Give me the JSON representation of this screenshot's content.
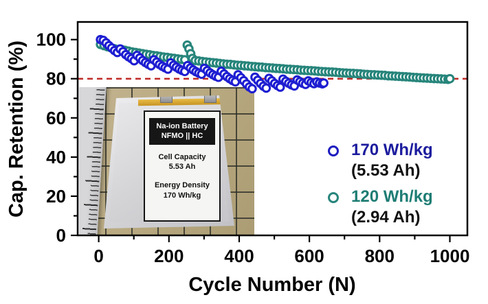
{
  "axes": {
    "x_label": "Cycle Number (N)",
    "y_label": "Cap. Retention (%)",
    "x_tick_labels": [
      "0",
      "200",
      "400",
      "600",
      "800",
      "1000"
    ],
    "y_tick_labels": [
      "0",
      "20",
      "40",
      "60",
      "80",
      "100"
    ]
  },
  "legend": {
    "entries": [
      {
        "label": "170 Wh/kg",
        "sub": "(5.53 Ah)",
        "marker_color": "#1d1dc0",
        "text_color": "#1c1c9e"
      },
      {
        "label": "120 Wh/kg",
        "sub": "(2.94 Ah)",
        "marker_color": "#27857b",
        "text_color": "#1e7d74"
      }
    ]
  },
  "inset": {
    "battery_label": {
      "title_line1": "Na-ion Battery",
      "title_line2": "NFMO || HC",
      "capacity_title": "Cell Capacity",
      "capacity_value": "5.53 Ah",
      "energy_title": "Energy Density",
      "energy_value": "170 Wh/kg"
    }
  },
  "chart_data": {
    "type": "scatter",
    "xlabel": "Cycle Number (N)",
    "ylabel": "Cap. Retention (%)",
    "xlim": [
      -60,
      1050
    ],
    "ylim": [
      0,
      109
    ],
    "x_major_ticks": [
      0,
      200,
      400,
      600,
      800,
      1000
    ],
    "x_minor_ticks": [
      100,
      300,
      500,
      700,
      900
    ],
    "y_major_ticks": [
      0,
      20,
      40,
      60,
      80,
      100
    ],
    "y_minor_ticks": [
      10,
      30,
      50,
      70,
      90
    ],
    "grid": false,
    "legend_position": "inside-right",
    "reference_line": {
      "y": 80,
      "color": "#bf2b28",
      "style": "dashed"
    },
    "series": [
      {
        "name": "170 Wh/kg (5.53 Ah)",
        "color": "#1e1ed2",
        "marker": "open-circle",
        "points": [
          [
            5,
            100
          ],
          [
            13,
            99.6
          ],
          [
            21,
            98.3
          ],
          [
            29,
            96.9
          ],
          [
            37,
            95.7
          ],
          [
            45,
            94.4
          ],
          [
            53,
            93.4
          ],
          [
            61,
            95.2
          ],
          [
            69,
            93.8
          ],
          [
            77,
            92.3
          ],
          [
            85,
            91.2
          ],
          [
            93,
            90.3
          ],
          [
            101,
            89.2
          ],
          [
            109,
            91.9
          ],
          [
            117,
            90.6
          ],
          [
            125,
            89.3
          ],
          [
            133,
            88.3
          ],
          [
            141,
            87.4
          ],
          [
            149,
            86.6
          ],
          [
            157,
            89.7
          ],
          [
            165,
            88.5
          ],
          [
            173,
            87.3
          ],
          [
            181,
            86.4
          ],
          [
            189,
            85.6
          ],
          [
            197,
            84.9
          ],
          [
            205,
            88.1
          ],
          [
            213,
            86.9
          ],
          [
            221,
            85.9
          ],
          [
            229,
            85.0
          ],
          [
            237,
            84.3
          ],
          [
            245,
            83.7
          ],
          [
            253,
            86.7
          ],
          [
            261,
            85.5
          ],
          [
            269,
            84.5
          ],
          [
            277,
            83.6
          ],
          [
            285,
            82.9
          ],
          [
            293,
            82.3
          ],
          [
            301,
            85.3
          ],
          [
            309,
            84.1
          ],
          [
            317,
            83.0
          ],
          [
            325,
            82.1
          ],
          [
            333,
            81.3
          ],
          [
            341,
            80.7
          ],
          [
            349,
            83.8
          ],
          [
            357,
            82.4
          ],
          [
            365,
            81.1
          ],
          [
            373,
            80.0
          ],
          [
            381,
            79.1
          ],
          [
            389,
            78.4
          ],
          [
            397,
            82.0
          ],
          [
            405,
            80.5
          ],
          [
            413,
            79.0
          ],
          [
            421,
            77.3
          ],
          [
            429,
            75.8
          ],
          [
            437,
            74.9
          ],
          [
            445,
            80.8
          ],
          [
            453,
            79.2
          ],
          [
            461,
            77.6
          ],
          [
            469,
            76.2
          ],
          [
            477,
            75.2
          ],
          [
            485,
            80.2
          ],
          [
            493,
            78.9
          ],
          [
            501,
            77.6
          ],
          [
            509,
            76.5
          ],
          [
            517,
            75.7
          ],
          [
            525,
            79.8
          ],
          [
            533,
            78.7
          ],
          [
            541,
            77.7
          ],
          [
            549,
            76.9
          ],
          [
            557,
            76.3
          ],
          [
            565,
            79.4
          ],
          [
            573,
            78.5
          ],
          [
            581,
            77.7
          ],
          [
            589,
            77.1
          ],
          [
            597,
            78.9
          ],
          [
            605,
            78.1
          ],
          [
            613,
            77.5
          ],
          [
            621,
            78.4
          ],
          [
            629,
            77.8
          ],
          [
            637,
            77.4
          ],
          [
            641,
            77.8
          ]
        ]
      },
      {
        "name": "120 Wh/kg (2.94 Ah)",
        "color": "#27857b",
        "marker": "open-circle",
        "points": [
          [
            5,
            97.5
          ],
          [
            15,
            96.9
          ],
          [
            25,
            96.3
          ],
          [
            35,
            95.8
          ],
          [
            45,
            95.3
          ],
          [
            55,
            94.9
          ],
          [
            65,
            94.9
          ],
          [
            75,
            94.5
          ],
          [
            85,
            94.1
          ],
          [
            95,
            93.7
          ],
          [
            105,
            93.4
          ],
          [
            115,
            93.1
          ],
          [
            125,
            92.8
          ],
          [
            135,
            92.5
          ],
          [
            145,
            92.2
          ],
          [
            155,
            91.9
          ],
          [
            165,
            91.7
          ],
          [
            175,
            91.4
          ],
          [
            185,
            91.1
          ],
          [
            195,
            90.9
          ],
          [
            205,
            90.6
          ],
          [
            215,
            90.4
          ],
          [
            225,
            90.1
          ],
          [
            235,
            89.9
          ],
          [
            245,
            89.7
          ],
          [
            252,
            97.2
          ],
          [
            257,
            95.3
          ],
          [
            262,
            92.8
          ],
          [
            267,
            90.4
          ],
          [
            275,
            89.3
          ],
          [
            285,
            89.1
          ],
          [
            295,
            88.8
          ],
          [
            305,
            88.6
          ],
          [
            315,
            88.4
          ],
          [
            325,
            88.2
          ],
          [
            335,
            88.0
          ],
          [
            345,
            87.8
          ],
          [
            355,
            87.6
          ],
          [
            365,
            87.4
          ],
          [
            375,
            87.3
          ],
          [
            385,
            87.1
          ],
          [
            395,
            86.9
          ],
          [
            405,
            86.8
          ],
          [
            415,
            86.6
          ],
          [
            425,
            86.5
          ],
          [
            435,
            86.3
          ],
          [
            445,
            86.2
          ],
          [
            455,
            86.0
          ],
          [
            465,
            85.9
          ],
          [
            475,
            85.7
          ],
          [
            485,
            85.6
          ],
          [
            495,
            85.5
          ],
          [
            505,
            85.3
          ],
          [
            515,
            85.2
          ],
          [
            525,
            85.1
          ],
          [
            535,
            84.9
          ],
          [
            545,
            84.8
          ],
          [
            555,
            84.7
          ],
          [
            565,
            84.6
          ],
          [
            575,
            84.4
          ],
          [
            585,
            84.3
          ],
          [
            595,
            84.2
          ],
          [
            605,
            84.1
          ],
          [
            615,
            84.0
          ],
          [
            625,
            83.8
          ],
          [
            635,
            83.7
          ],
          [
            645,
            83.6
          ],
          [
            655,
            83.5
          ],
          [
            665,
            83.4
          ],
          [
            675,
            83.3
          ],
          [
            685,
            83.1
          ],
          [
            695,
            83.0
          ],
          [
            705,
            82.9
          ],
          [
            715,
            82.8
          ],
          [
            725,
            82.7
          ],
          [
            735,
            82.6
          ],
          [
            745,
            82.5
          ],
          [
            755,
            82.3
          ],
          [
            765,
            82.2
          ],
          [
            775,
            82.1
          ],
          [
            785,
            82.0
          ],
          [
            795,
            81.9
          ],
          [
            805,
            81.8
          ],
          [
            815,
            81.7
          ],
          [
            825,
            81.5
          ],
          [
            835,
            81.4
          ],
          [
            845,
            81.3
          ],
          [
            855,
            81.2
          ],
          [
            865,
            81.1
          ],
          [
            875,
            81.0
          ],
          [
            885,
            80.9
          ],
          [
            895,
            80.7
          ],
          [
            905,
            80.6
          ],
          [
            915,
            80.5
          ],
          [
            925,
            80.4
          ],
          [
            935,
            80.3
          ],
          [
            945,
            80.2
          ],
          [
            955,
            80.1
          ],
          [
            965,
            80.0
          ],
          [
            975,
            79.9
          ],
          [
            985,
            79.8
          ],
          [
            995,
            79.7
          ],
          [
            1000,
            80.0
          ]
        ]
      }
    ]
  }
}
